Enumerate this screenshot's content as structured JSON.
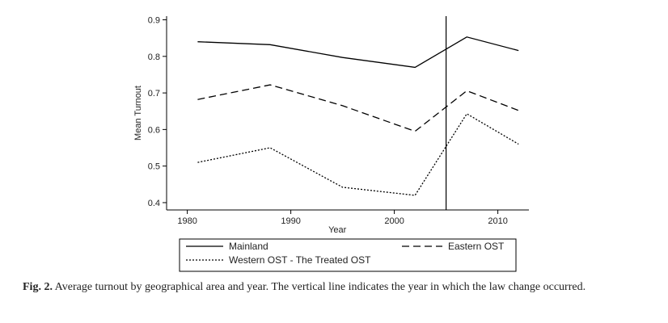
{
  "chart_data": {
    "type": "line",
    "xlabel": "Year",
    "ylabel": "Mean Turnout",
    "xlim": [
      1978,
      2013
    ],
    "ylim": [
      0.38,
      0.91
    ],
    "xticks": [
      1980,
      1990,
      2000,
      2010
    ],
    "yticks": [
      0.4,
      0.5,
      0.6,
      0.7,
      0.8,
      0.9
    ],
    "ytick_labels": [
      "0.4",
      "0.5",
      "0.6",
      "0.7",
      "0.8",
      "0.9"
    ],
    "grid": false,
    "vertical_line": {
      "x": 2005
    },
    "legend_position": "bottom",
    "series": [
      {
        "name": "Mainland",
        "style": "solid",
        "color": "#000000",
        "x": [
          1981,
          1988,
          1995,
          2002,
          2007,
          2012
        ],
        "y": [
          0.84,
          0.832,
          0.797,
          0.77,
          0.853,
          0.816
        ]
      },
      {
        "name": "Eastern OST",
        "style": "dashed",
        "color": "#000000",
        "x": [
          1981,
          1988,
          1995,
          2002,
          2007,
          2012
        ],
        "y": [
          0.682,
          0.722,
          0.665,
          0.595,
          0.706,
          0.652
        ]
      },
      {
        "name": "Western OST - The Treated OST",
        "style": "dotted",
        "color": "#000000",
        "x": [
          1981,
          1988,
          1995,
          2002,
          2007,
          2012
        ],
        "y": [
          0.51,
          0.55,
          0.442,
          0.42,
          0.643,
          0.56
        ]
      }
    ]
  },
  "caption": {
    "label": "Fig. 2.",
    "text": " Average turnout by geographical area and year. The vertical line indicates the year in which the law change occurred."
  }
}
